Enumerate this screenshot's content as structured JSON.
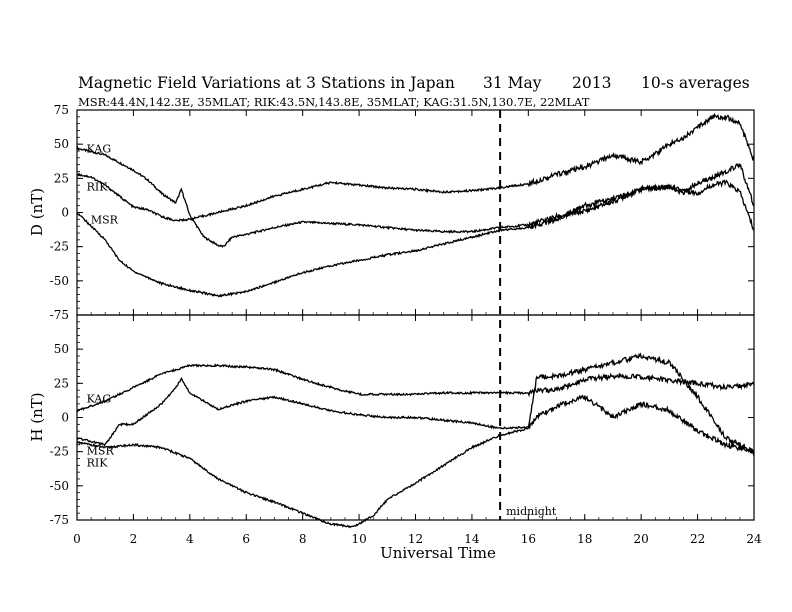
{
  "header": {
    "title_main": "Magnetic Field Variations at 3 Stations in Japan",
    "title_date": "31 May",
    "title_year": "2013",
    "title_avg": "10-s averages",
    "subtitle": "MSR:44.4N,142.3E, 35MLAT;  RIK:43.5N,143.8E, 35MLAT;  KAG:31.5N,130.7E, 22MLAT"
  },
  "annotation": {
    "marker_time": 15,
    "marker_label": "midnight"
  },
  "colors": {
    "ink": "#000000",
    "background": "#ffffff"
  },
  "chart_data": [
    {
      "type": "line",
      "ylabel": "D (nT)",
      "xlabel": "Universal Time",
      "xlim": [
        0,
        24
      ],
      "ylim": [
        -75,
        75
      ],
      "yticks": [
        -75,
        -50,
        -25,
        0,
        25,
        50,
        75
      ],
      "xticks": [
        0,
        2,
        4,
        6,
        8,
        10,
        12,
        14,
        16,
        18,
        20,
        22,
        24
      ],
      "grid": false,
      "series": [
        {
          "name": "KAG",
          "label_at": [
            0.2,
            47
          ],
          "points": [
            [
              0,
              47
            ],
            [
              1,
              42
            ],
            [
              2,
              31
            ],
            [
              2.5,
              24
            ],
            [
              3,
              14
            ],
            [
              3.5,
              7
            ],
            [
              3.7,
              17
            ],
            [
              4,
              -2
            ],
            [
              4.5,
              -18
            ],
            [
              5,
              -24
            ],
            [
              5.2,
              -25
            ],
            [
              5.5,
              -18
            ],
            [
              6,
              -16
            ],
            [
              7,
              -11
            ],
            [
              8,
              -7
            ],
            [
              9,
              -8
            ],
            [
              10,
              -9
            ],
            [
              11,
              -11
            ],
            [
              12,
              -13
            ],
            [
              13,
              -14
            ],
            [
              14,
              -14
            ],
            [
              15,
              -11
            ],
            [
              16,
              -9
            ],
            [
              17,
              -3
            ],
            [
              18,
              1
            ],
            [
              19,
              8
            ],
            [
              20,
              17
            ],
            [
              21,
              19
            ],
            [
              22,
              14
            ],
            [
              22.5,
              20
            ],
            [
              23,
              22
            ],
            [
              23.5,
              15
            ],
            [
              24,
              -13
            ]
          ]
        },
        {
          "name": "RIK",
          "label_at": [
            0.2,
            19
          ],
          "points": [
            [
              0,
              28
            ],
            [
              0.5,
              26
            ],
            [
              1,
              20
            ],
            [
              2,
              4
            ],
            [
              2.5,
              2
            ],
            [
              3,
              -3
            ],
            [
              3.5,
              -6
            ],
            [
              4,
              -5
            ],
            [
              5,
              0
            ],
            [
              6,
              5
            ],
            [
              7,
              12
            ],
            [
              8,
              17
            ],
            [
              9,
              22
            ],
            [
              10,
              20
            ],
            [
              11,
              18
            ],
            [
              12,
              17
            ],
            [
              13,
              15
            ],
            [
              14,
              16
            ],
            [
              15,
              18
            ],
            [
              16,
              21
            ],
            [
              17,
              28
            ],
            [
              18,
              33
            ],
            [
              19,
              42
            ],
            [
              20,
              37
            ],
            [
              20.5,
              43
            ],
            [
              21,
              50
            ],
            [
              21.5,
              55
            ],
            [
              22,
              62
            ],
            [
              22.5,
              70
            ],
            [
              23,
              70
            ],
            [
              23.5,
              65
            ],
            [
              24,
              38
            ]
          ]
        },
        {
          "name": "MSR",
          "label_at": [
            0.35,
            -5
          ],
          "points": [
            [
              0,
              0
            ],
            [
              0.5,
              -10
            ],
            [
              1,
              -20
            ],
            [
              1.5,
              -35
            ],
            [
              2,
              -43
            ],
            [
              3,
              -52
            ],
            [
              4,
              -57
            ],
            [
              5,
              -61
            ],
            [
              6,
              -58
            ],
            [
              7,
              -51
            ],
            [
              8,
              -44
            ],
            [
              9,
              -39
            ],
            [
              10,
              -35
            ],
            [
              11,
              -31
            ],
            [
              12,
              -28
            ],
            [
              13,
              -23
            ],
            [
              14,
              -18
            ],
            [
              15,
              -13
            ],
            [
              16,
              -11
            ],
            [
              17,
              -5
            ],
            [
              18,
              5
            ],
            [
              19,
              10
            ],
            [
              20,
              17
            ],
            [
              21,
              19
            ],
            [
              21.5,
              14
            ],
            [
              22,
              22
            ],
            [
              22.5,
              25
            ],
            [
              23,
              30
            ],
            [
              23.5,
              35
            ],
            [
              24,
              5
            ]
          ]
        }
      ]
    },
    {
      "type": "line",
      "ylabel": "H (nT)",
      "xlabel": "Universal Time",
      "xlim": [
        0,
        24
      ],
      "ylim": [
        -75,
        75
      ],
      "yticks": [
        -75,
        -50,
        -25,
        0,
        25,
        50
      ],
      "xticks": [
        0,
        2,
        4,
        6,
        8,
        10,
        12,
        14,
        16,
        18,
        20,
        22,
        24
      ],
      "xticklabels": [
        "0",
        "2",
        "4",
        "6",
        "8",
        "10",
        "12",
        "14",
        "16",
        "18",
        "20",
        "22",
        "24"
      ],
      "grid": false,
      "series": [
        {
          "name": "KAG",
          "label_at": [
            0.2,
            14
          ],
          "points": [
            [
              0,
              5
            ],
            [
              1,
              12
            ],
            [
              2,
              22
            ],
            [
              3,
              32
            ],
            [
              4,
              38
            ],
            [
              5,
              38
            ],
            [
              6,
              37
            ],
            [
              7,
              35
            ],
            [
              8,
              28
            ],
            [
              9,
              22
            ],
            [
              10,
              17
            ],
            [
              11,
              17
            ],
            [
              12,
              17
            ],
            [
              13,
              18
            ],
            [
              14,
              18
            ],
            [
              15,
              18
            ],
            [
              16,
              18
            ],
            [
              16.3,
              20
            ],
            [
              17,
              20
            ],
            [
              18,
              28
            ],
            [
              19,
              30
            ],
            [
              20,
              30
            ],
            [
              21,
              27
            ],
            [
              22,
              25
            ],
            [
              23,
              22
            ],
            [
              24,
              24
            ]
          ]
        },
        {
          "name": "MSR",
          "label_at": [
            0.2,
            -24
          ],
          "points": [
            [
              0,
              -15
            ],
            [
              1,
              -20
            ],
            [
              1.5,
              -5
            ],
            [
              2,
              -5
            ],
            [
              3,
              10
            ],
            [
              3.5,
              22
            ],
            [
              3.7,
              28
            ],
            [
              4,
              18
            ],
            [
              5,
              6
            ],
            [
              6,
              12
            ],
            [
              7,
              15
            ],
            [
              8,
              10
            ],
            [
              9,
              5
            ],
            [
              10,
              2
            ],
            [
              11,
              0
            ],
            [
              12,
              0
            ],
            [
              13,
              -2
            ],
            [
              14,
              -4
            ],
            [
              15,
              -8
            ],
            [
              16,
              -7
            ],
            [
              16.3,
              0
            ],
            [
              17,
              8
            ],
            [
              17.5,
              12
            ],
            [
              18,
              15
            ],
            [
              18.5,
              8
            ],
            [
              19,
              0
            ],
            [
              20,
              10
            ],
            [
              21,
              5
            ],
            [
              22,
              -10
            ],
            [
              23,
              -20
            ],
            [
              24,
              -25
            ]
          ]
        },
        {
          "name": "RIK",
          "label_at": [
            0.2,
            -33
          ],
          "points": [
            [
              0,
              -18
            ],
            [
              1,
              -22
            ],
            [
              2,
              -20
            ],
            [
              3,
              -22
            ],
            [
              4,
              -30
            ],
            [
              5,
              -45
            ],
            [
              6,
              -55
            ],
            [
              7,
              -62
            ],
            [
              8,
              -70
            ],
            [
              9,
              -78
            ],
            [
              9.8,
              -80
            ],
            [
              10.5,
              -72
            ],
            [
              11,
              -60
            ],
            [
              12,
              -48
            ],
            [
              13,
              -35
            ],
            [
              14,
              -22
            ],
            [
              15,
              -13
            ],
            [
              16,
              -8
            ],
            [
              16.3,
              30
            ],
            [
              17,
              30
            ],
            [
              18,
              35
            ],
            [
              19,
              40
            ],
            [
              20,
              45
            ],
            [
              21,
              40
            ],
            [
              22,
              15
            ],
            [
              23,
              -15
            ],
            [
              24,
              -25
            ]
          ]
        }
      ]
    }
  ]
}
